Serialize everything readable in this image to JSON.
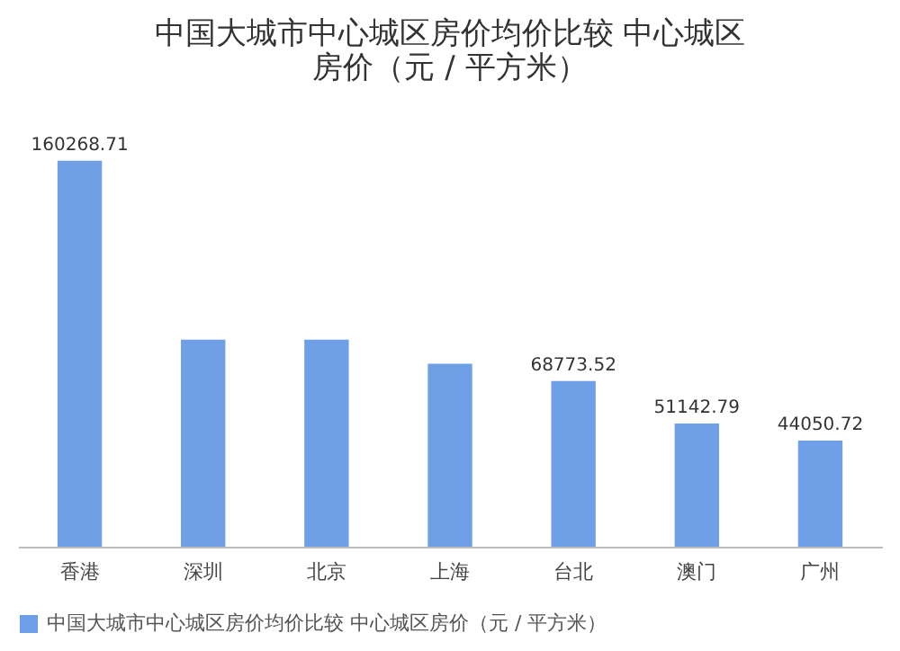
{
  "chart_data": {
    "type": "bar",
    "title": "中国大城市中心城区房价均价比较 中心城区房价（元 / 平方米）",
    "categories": [
      "香港",
      "深圳",
      "北京",
      "上海",
      "台北",
      "澳门",
      "广州"
    ],
    "series": [
      {
        "name": "中国大城市中心城区房价均价比较 中心城区房价（元 / 平方米）",
        "color": "#6f9fe6",
        "values": [
          160268.71,
          86000,
          86000,
          76000,
          68773.52,
          51142.79,
          44050.72
        ],
        "value_labels": [
          "160268.71",
          null,
          null,
          null,
          "68773.52",
          "51142.79",
          "44050.72"
        ]
      }
    ],
    "legend": "bottom",
    "grid": false
  }
}
